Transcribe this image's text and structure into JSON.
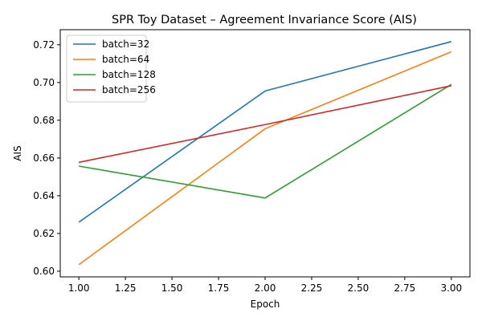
{
  "chart_data": {
    "type": "line",
    "title": "SPR Toy Dataset – Agreement Invariance Score (AIS)",
    "xlabel": "Epoch",
    "ylabel": "AIS",
    "xlim": [
      0.9,
      3.1
    ],
    "ylim": [
      0.597,
      0.728
    ],
    "xticks": [
      1.0,
      1.25,
      1.5,
      1.75,
      2.0,
      2.25,
      2.5,
      2.75,
      3.0
    ],
    "xtick_labels": [
      "1.00",
      "1.25",
      "1.50",
      "1.75",
      "2.00",
      "2.25",
      "2.50",
      "2.75",
      "3.00"
    ],
    "yticks": [
      0.6,
      0.62,
      0.64,
      0.66,
      0.68,
      0.7,
      0.72
    ],
    "ytick_labels": [
      "0.60",
      "0.62",
      "0.64",
      "0.66",
      "0.68",
      "0.70",
      "0.72"
    ],
    "grid": false,
    "legend_position": "top-left",
    "x": [
      1,
      2,
      3
    ],
    "series": [
      {
        "name": "batch=32",
        "color": "#1f77b4",
        "values": [
          0.626,
          0.6955,
          0.7217
        ]
      },
      {
        "name": "batch=64",
        "color": "#ff7f0e",
        "values": [
          0.6035,
          0.6755,
          0.7163
        ]
      },
      {
        "name": "batch=128",
        "color": "#2ca02c",
        "values": [
          0.6557,
          0.6388,
          0.699
        ]
      },
      {
        "name": "batch=256",
        "color": "#d62728",
        "values": [
          0.6577,
          0.6777,
          0.6983
        ]
      }
    ]
  }
}
